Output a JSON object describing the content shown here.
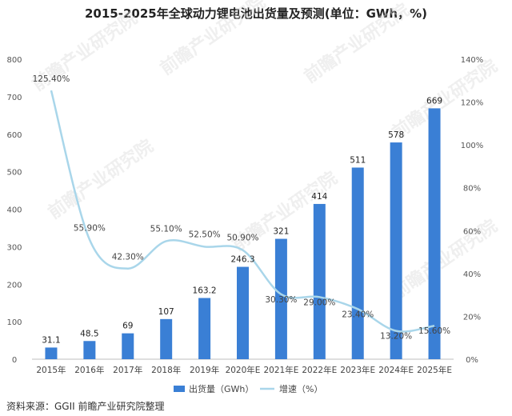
{
  "chart_data": {
    "type": "bar",
    "title": "2015-2025年全球动力锂电池出货量及预测(单位：GWh，%)",
    "categories": [
      "2015年",
      "2016年",
      "2017年",
      "2018年",
      "2019年",
      "2020年E",
      "2021年E",
      "2022年E",
      "2023年E",
      "2024年E",
      "2025年E"
    ],
    "series": [
      {
        "name": "出货量（GWh）",
        "type": "bar",
        "axis": "left",
        "color": "#3a7fd5",
        "values": [
          31.1,
          48.5,
          69,
          107,
          163.2,
          246.3,
          321,
          414,
          511,
          578,
          669
        ],
        "labels": [
          "31.1",
          "48.5",
          "69",
          "107",
          "163.2",
          "246.3",
          "321",
          "414",
          "511",
          "578",
          "669"
        ]
      },
      {
        "name": "增速（%）",
        "type": "line",
        "axis": "right",
        "color": "#a9d6ea",
        "values": [
          125.4,
          55.9,
          42.3,
          55.1,
          52.5,
          50.9,
          30.3,
          29.0,
          23.4,
          13.2,
          15.6
        ],
        "labels": [
          "125.40%",
          "55.90%",
          "42.30%",
          "55.10%",
          "52.50%",
          "50.90%",
          "30.30%",
          "29.00%",
          "23.40%",
          "13.20%",
          "15.60%"
        ]
      }
    ],
    "y_left": {
      "range": [
        0,
        800
      ],
      "ticks": [
        0,
        100,
        200,
        300,
        400,
        500,
        600,
        700,
        800
      ],
      "tick_labels": [
        "0",
        "100",
        "200",
        "300",
        "400",
        "500",
        "600",
        "700",
        "800"
      ]
    },
    "y_right": {
      "range": [
        0,
        140
      ],
      "ticks": [
        0,
        20,
        40,
        60,
        80,
        100,
        120,
        140
      ],
      "tick_labels": [
        "0%",
        "20%",
        "40%",
        "60%",
        "80%",
        "100%",
        "120%",
        "140%"
      ]
    },
    "grid": false,
    "legend_position": "bottom"
  },
  "source_text": "资料来源：GGII 前瞻产业研究院整理",
  "watermark_text": "前瞻产业研究院"
}
